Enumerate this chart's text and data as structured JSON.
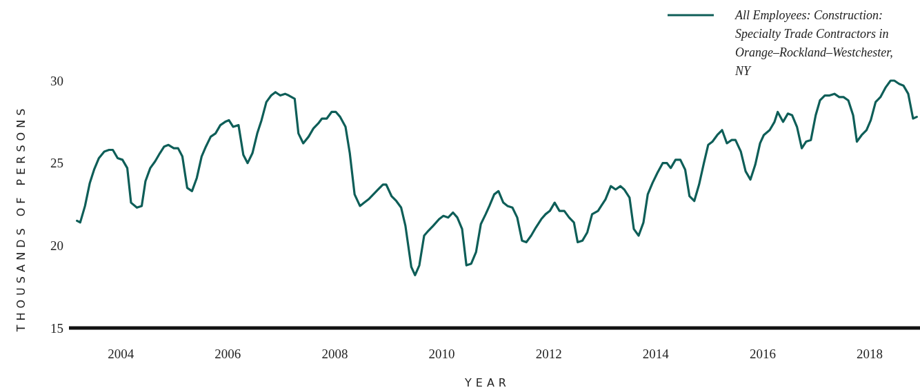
{
  "chart_data": {
    "type": "line",
    "xlabel": "YEAR",
    "ylabel": "THOUSANDS OF PERSONS",
    "xlim": [
      2003.03,
      2018.94
    ],
    "ylim": [
      15,
      30
    ],
    "xticks": [
      2004,
      2006,
      2008,
      2010,
      2012,
      2014,
      2016,
      2018
    ],
    "yticks": [
      15,
      20,
      25,
      30
    ],
    "grid": false,
    "legend": "top right",
    "marker": "none",
    "line_style": "solid",
    "series": [
      {
        "name": "All Employees: Construction: Specialty Trade Contractors in Orange–Rockland–Westchester, NY",
        "color": "#0e5e58",
        "x": [
          2003.18,
          2003.24,
          2003.33,
          2003.42,
          2003.5,
          2003.59,
          2003.69,
          2003.78,
          2003.85,
          2003.94,
          2004.03,
          2004.12,
          2004.19,
          2004.3,
          2004.39,
          2004.46,
          2004.55,
          2004.64,
          2004.73,
          2004.81,
          2004.89,
          2004.99,
          2005.07,
          2005.15,
          2005.24,
          2005.33,
          2005.42,
          2005.51,
          2005.59,
          2005.68,
          2005.77,
          2005.86,
          2005.95,
          2006.02,
          2006.1,
          2006.2,
          2006.29,
          2006.37,
          2006.46,
          2006.55,
          2006.63,
          2006.72,
          2006.81,
          2006.89,
          2006.98,
          2007.07,
          2007.14,
          2007.25,
          2007.32,
          2007.41,
          2007.51,
          2007.6,
          2007.69,
          2007.76,
          2007.85,
          2007.94,
          2008.02,
          2008.1,
          2008.2,
          2008.28,
          2008.37,
          2008.47,
          2008.55,
          2008.63,
          2008.72,
          2008.81,
          2008.9,
          2008.96,
          2009.06,
          2009.15,
          2009.24,
          2009.32,
          2009.43,
          2009.5,
          2009.58,
          2009.67,
          2009.75,
          2009.84,
          2009.95,
          2010.03,
          2010.12,
          2010.21,
          2010.29,
          2010.38,
          2010.46,
          2010.55,
          2010.64,
          2010.73,
          2010.82,
          2010.89,
          2010.98,
          2011.06,
          2011.15,
          2011.23,
          2011.32,
          2011.41,
          2011.5,
          2011.58,
          2011.67,
          2011.76,
          2011.86,
          2011.94,
          2012.02,
          2012.11,
          2012.2,
          2012.29,
          2012.38,
          2012.47,
          2012.54,
          2012.63,
          2012.72,
          2012.81,
          2012.92,
          2012.98,
          2013.06,
          2013.16,
          2013.25,
          2013.34,
          2013.41,
          2013.51,
          2013.59,
          2013.68,
          2013.77,
          2013.85,
          2013.94,
          2014.03,
          2014.13,
          2014.21,
          2014.28,
          2014.37,
          2014.46,
          2014.55,
          2014.63,
          2014.72,
          2014.81,
          2014.9,
          2014.98,
          2015.06,
          2015.15,
          2015.24,
          2015.33,
          2015.42,
          2015.49,
          2015.59,
          2015.68,
          2015.77,
          2015.86,
          2015.95,
          2016.02,
          2016.13,
          2016.22,
          2016.28,
          2016.38,
          2016.47,
          2016.55,
          2016.64,
          2016.73,
          2016.81,
          2016.9,
          2016.99,
          2017.07,
          2017.16,
          2017.25,
          2017.34,
          2017.43,
          2017.51,
          2017.6,
          2017.69,
          2017.76,
          2017.85,
          2017.94,
          2018.02,
          2018.11,
          2018.2,
          2018.3,
          2018.39,
          2018.46,
          2018.55,
          2018.63,
          2018.72,
          2018.81,
          2018.88
        ],
        "values": [
          21.5,
          21.4,
          22.4,
          23.8,
          24.6,
          25.3,
          25.7,
          25.8,
          25.8,
          25.3,
          25.2,
          24.7,
          22.6,
          22.3,
          22.4,
          23.9,
          24.7,
          25.1,
          25.6,
          26.0,
          26.1,
          25.9,
          25.9,
          25.4,
          23.5,
          23.3,
          24.1,
          25.4,
          26.0,
          26.6,
          26.8,
          27.3,
          27.5,
          27.6,
          27.2,
          27.3,
          25.5,
          25.0,
          25.6,
          26.8,
          27.6,
          28.7,
          29.1,
          29.3,
          29.1,
          29.2,
          29.1,
          28.9,
          26.8,
          26.2,
          26.6,
          27.1,
          27.4,
          27.7,
          27.7,
          28.1,
          28.1,
          27.8,
          27.2,
          25.6,
          23.1,
          22.4,
          22.6,
          22.8,
          23.1,
          23.4,
          23.7,
          23.7,
          23.0,
          22.7,
          22.3,
          21.2,
          18.7,
          18.2,
          18.8,
          20.6,
          20.9,
          21.2,
          21.6,
          21.8,
          21.7,
          22.0,
          21.7,
          21.0,
          18.8,
          18.9,
          19.6,
          21.3,
          21.9,
          22.4,
          23.1,
          23.3,
          22.6,
          22.4,
          22.3,
          21.7,
          20.3,
          20.2,
          20.6,
          21.1,
          21.6,
          21.9,
          22.1,
          22.6,
          22.1,
          22.1,
          21.7,
          21.4,
          20.2,
          20.3,
          20.8,
          21.9,
          22.1,
          22.4,
          22.8,
          23.6,
          23.4,
          23.6,
          23.4,
          22.9,
          21.0,
          20.6,
          21.4,
          23.1,
          23.8,
          24.4,
          25.0,
          25.0,
          24.7,
          25.2,
          25.2,
          24.6,
          23.0,
          22.7,
          23.7,
          25.0,
          26.1,
          26.3,
          26.7,
          27.0,
          26.2,
          26.4,
          26.4,
          25.7,
          24.5,
          24.0,
          24.9,
          26.2,
          26.7,
          27.0,
          27.5,
          28.1,
          27.5,
          28.0,
          27.9,
          27.2,
          25.9,
          26.3,
          26.4,
          27.9,
          28.8,
          29.1,
          29.1,
          29.2,
          29.0,
          29.0,
          28.8,
          27.9,
          26.3,
          26.7,
          27.0,
          27.6,
          28.7,
          29.0,
          29.6,
          30.0,
          30.0,
          29.8,
          29.7,
          29.2,
          27.7,
          27.8
        ]
      }
    ]
  }
}
